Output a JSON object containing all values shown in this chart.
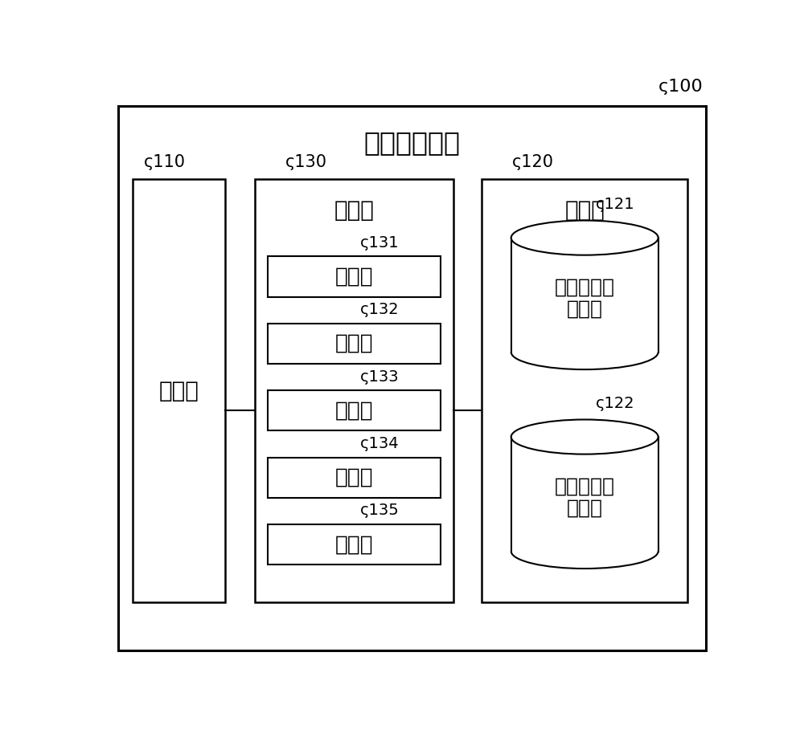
{
  "title": "信息处理装置",
  "label_100": "100",
  "label_110": "110",
  "label_120": "120",
  "label_130": "130",
  "label_121": "121",
  "label_122": "122",
  "label_131": "131",
  "label_132": "132",
  "label_133": "133",
  "label_134": "134",
  "label_135": "135",
  "text_110": "通信部",
  "text_120": "存储部",
  "text_130": "控制部",
  "text_131": "获取部",
  "text_132": "生成部",
  "text_133": "应用部",
  "text_134": "提供部",
  "text_135": "决定部",
  "text_121_line1": "发布者信息",
  "text_121_line2": "存储部",
  "text_122_line1": "化妆品信息",
  "text_122_line2": "存储部",
  "bg_color": "#ffffff",
  "line_color": "#000000",
  "lw_outer": 2.2,
  "lw_inner": 1.8,
  "lw_sub": 1.5,
  "font_size_title": 24,
  "font_size_section": 20,
  "font_size_sub": 19,
  "font_size_cyl": 18,
  "font_size_ref": 15,
  "curly": "ς"
}
